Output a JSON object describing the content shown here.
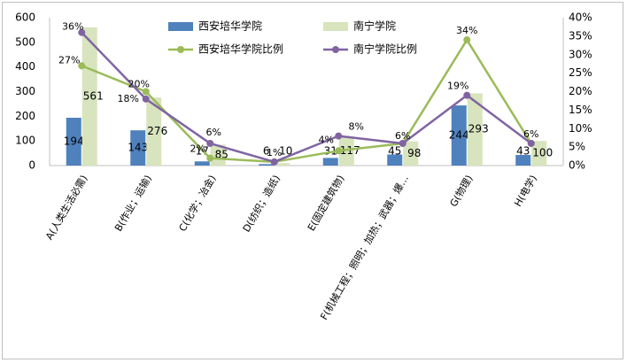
{
  "chart_data": {
    "type": "bar",
    "categories": [
      "A(人类生活必需)",
      "B(作业；运输)",
      "C(化学；冶金)",
      "D(纺织；造纸)",
      "E(固定建筑物)",
      "F(机械工程；照明；加热；武器；爆…",
      "G(物理)",
      "H(电学)"
    ],
    "series": [
      {
        "name": "西安培华学院",
        "kind": "bar",
        "axis": "left",
        "color": "#4f81bd",
        "values": [
          194,
          143,
          17,
          6,
          31,
          45,
          244,
          43
        ],
        "labels": [
          "194",
          "143",
          "17",
          "6",
          "31",
          "45",
          "244",
          "43"
        ]
      },
      {
        "name": "南宁学院",
        "kind": "bar",
        "axis": "left",
        "color": "#d7e4bd",
        "values": [
          561,
          276,
          85,
          10,
          117,
          98,
          293,
          100
        ],
        "labels": [
          "561",
          "276",
          "85",
          "10",
          "117",
          "98",
          "293",
          "100"
        ]
      },
      {
        "name": "西安培华学院比例",
        "kind": "line",
        "axis": "right",
        "color": "#9bbb59",
        "values": [
          27,
          20,
          2,
          1,
          4,
          6,
          34,
          6
        ],
        "labels": [
          "27%",
          "20%",
          "2%",
          "1%",
          "4%",
          "6%",
          "34%",
          "6%"
        ]
      },
      {
        "name": "南宁学院比例",
        "kind": "line",
        "axis": "right",
        "color": "#8064a2",
        "values": [
          36,
          18,
          6,
          1,
          8,
          6,
          19,
          6
        ],
        "labels": [
          "36%",
          "18%",
          "6%",
          "",
          "8%",
          "",
          "19%",
          ""
        ]
      }
    ],
    "yleft": {
      "min": 0,
      "max": 600,
      "ticks": [
        "0",
        "100",
        "200",
        "300",
        "400",
        "500",
        "600"
      ]
    },
    "yright": {
      "min": 0,
      "max": 40,
      "ticks": [
        "0%",
        "5%",
        "10%",
        "15%",
        "20%",
        "25%",
        "30%",
        "35%",
        "40%"
      ]
    },
    "grid": false,
    "legend": "top-center"
  }
}
